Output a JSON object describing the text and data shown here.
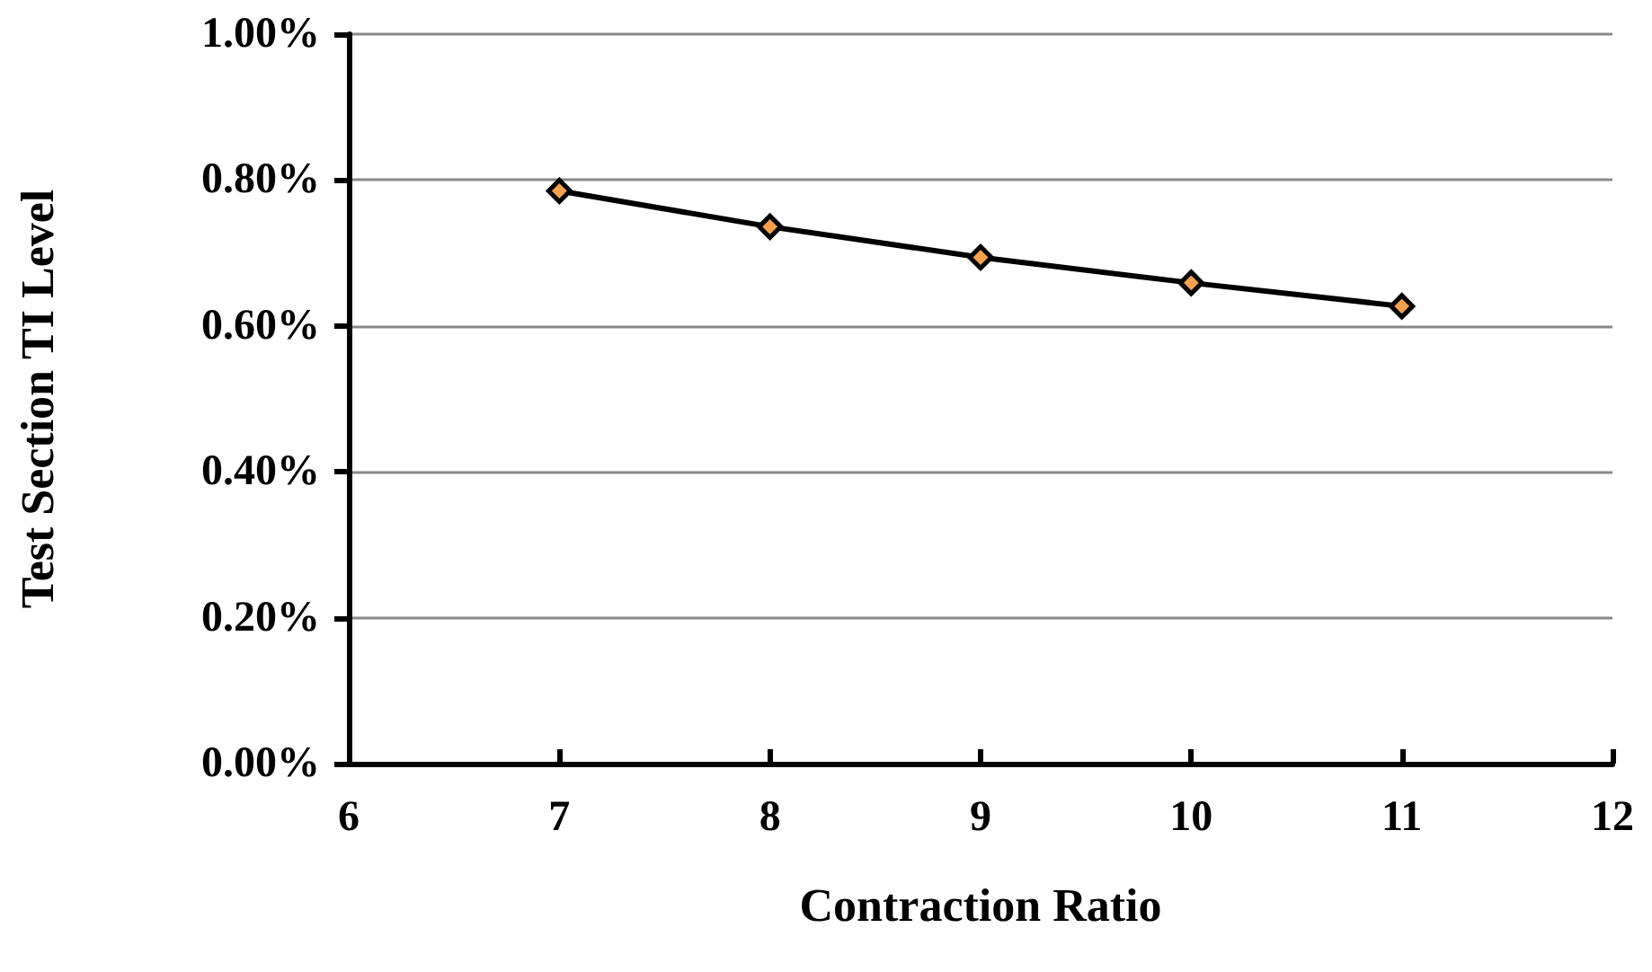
{
  "chart_data": {
    "type": "line",
    "xlabel": "Contraction Ratio",
    "ylabel": "Test Section TI Level",
    "x": [
      7,
      8,
      9,
      10,
      11
    ],
    "series": [
      {
        "color": "#f4a04c",
        "values": [
          0.785,
          0.736,
          0.694,
          0.659,
          0.627
        ]
      }
    ],
    "xlim": [
      6,
      12
    ],
    "xticks": [
      6,
      7,
      8,
      9,
      10,
      11,
      12
    ],
    "ylim": [
      0,
      1
    ],
    "yticks": [
      {
        "value": 0,
        "label": "0.00%"
      },
      {
        "value": 0.2,
        "label": "0.20%"
      },
      {
        "value": 0.4,
        "label": "0.40%"
      },
      {
        "value": 0.6,
        "label": "0.60%"
      },
      {
        "value": 0.8,
        "label": "0.80%"
      },
      {
        "value": 1,
        "label": "1.00%"
      }
    ],
    "grid": "y",
    "marker": "diamond",
    "line_style": "solid"
  }
}
